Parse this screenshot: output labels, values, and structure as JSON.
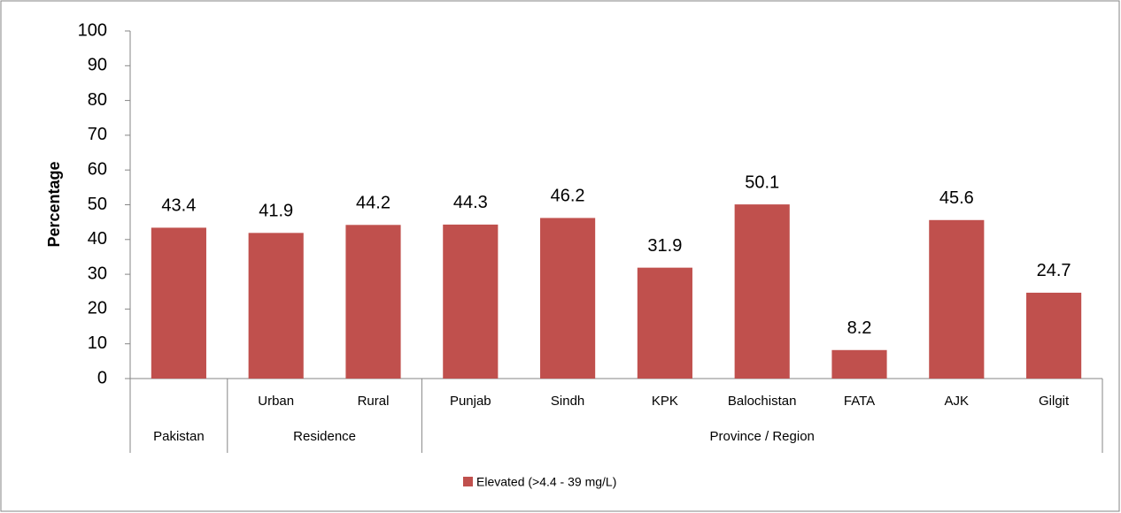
{
  "chart_data": {
    "type": "bar",
    "y_label": "Percentage",
    "categories": [
      null,
      "Urban",
      "Rural",
      "Punjab",
      "Sindh",
      "KPK",
      "Balochistan",
      "FATA",
      "AJK",
      "Gilgit"
    ],
    "groups": [
      {
        "label": "Pakistan",
        "size": 1
      },
      {
        "label": "Residence",
        "size": 2
      },
      {
        "label": "Province / Region",
        "size": 7
      }
    ],
    "series": [
      {
        "name": "Elevated (>4.4 - 39 mg/L)",
        "color": "#c0504d",
        "values": [
          43.4,
          41.9,
          44.2,
          44.3,
          46.2,
          31.9,
          50.1,
          8.2,
          45.6,
          24.7
        ]
      }
    ],
    "ylim": [
      0,
      100
    ],
    "yticks": [
      0,
      10,
      20,
      30,
      40,
      50,
      60,
      70,
      80,
      90,
      100
    ],
    "grid": false,
    "legend": "bottom"
  }
}
